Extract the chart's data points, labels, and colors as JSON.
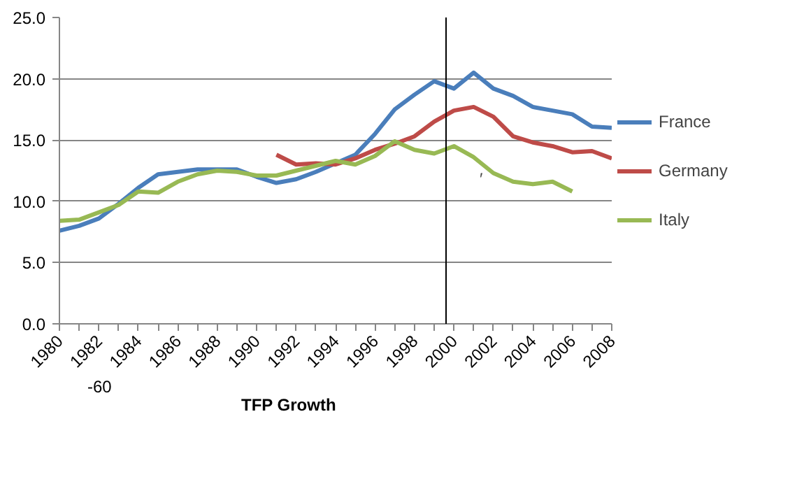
{
  "chart_data": {
    "type": "line",
    "x": [
      1980,
      1981,
      1982,
      1983,
      1984,
      1985,
      1986,
      1987,
      1988,
      1989,
      1990,
      1991,
      1992,
      1993,
      1994,
      1995,
      1996,
      1997,
      1998,
      1999,
      2000,
      2001,
      2002,
      2003,
      2004,
      2005,
      2006,
      2007,
      2008
    ],
    "series": [
      {
        "name": "France",
        "color": "#4a7ebb",
        "values": [
          7.6,
          8.0,
          8.6,
          9.8,
          11.1,
          12.2,
          12.4,
          12.6,
          12.6,
          12.6,
          12.0,
          11.5,
          11.8,
          12.4,
          13.1,
          13.8,
          15.5,
          17.5,
          18.7,
          19.8,
          19.2,
          20.5,
          19.2,
          18.6,
          17.7,
          17.4,
          17.1,
          16.1,
          16.0
        ]
      },
      {
        "name": "Germany",
        "color": "#be4b48",
        "values": [
          null,
          null,
          null,
          null,
          null,
          null,
          null,
          null,
          null,
          null,
          null,
          13.8,
          13.0,
          13.1,
          13.0,
          13.5,
          14.2,
          14.7,
          15.3,
          16.5,
          17.4,
          17.7,
          16.9,
          15.3,
          14.8,
          14.5,
          14.0,
          14.1,
          13.5
        ]
      },
      {
        "name": "Italy",
        "color": "#98b954",
        "values": [
          8.4,
          8.5,
          9.1,
          9.7,
          10.8,
          10.7,
          11.6,
          12.2,
          12.5,
          12.4,
          12.1,
          12.1,
          12.5,
          12.9,
          13.3,
          13.0,
          13.7,
          14.9,
          14.2,
          13.9,
          14.5,
          13.6,
          12.3,
          11.6,
          11.4,
          11.6,
          10.8,
          null,
          null
        ]
      }
    ],
    "xlim": [
      1980,
      2008
    ],
    "xticks": [
      1980,
      {
        "value": 1981,
        "label": null
      },
      1982,
      {
        "value": 1983,
        "label": null
      },
      1984,
      {
        "value": 1985,
        "label": null
      },
      1986,
      {
        "value": 1987,
        "label": null
      },
      1988,
      {
        "value": 1989,
        "label": null
      },
      1990,
      {
        "value": 1991,
        "label": null
      },
      1992,
      {
        "value": 1993,
        "label": null
      },
      1994,
      {
        "value": 1995,
        "label": null
      },
      1996,
      {
        "value": 1997,
        "label": null
      },
      1998,
      {
        "value": 1999,
        "label": null
      },
      2000,
      {
        "value": 2001,
        "label": null
      },
      2002,
      {
        "value": 2003,
        "label": null
      },
      2004,
      {
        "value": 2005,
        "label": null
      },
      2006,
      {
        "value": 2007,
        "label": null
      },
      2008
    ],
    "ylim": [
      0,
      25
    ],
    "yticks": [
      {
        "value": 0,
        "label": "0.0"
      },
      {
        "value": 5,
        "label": "5.0"
      },
      {
        "value": 10,
        "label": "10.0"
      },
      {
        "value": 15,
        "label": "15.0"
      },
      {
        "value": 20,
        "label": "20.0"
      },
      {
        "value": 25,
        "label": "25.0"
      }
    ],
    "ref_lines": [
      {
        "axis": "x",
        "value": 1999.6,
        "color": "#000000"
      }
    ],
    "annotations": [
      "-60",
      "TFP Growth",
      "′"
    ],
    "grid": "y",
    "legend": "right",
    "marker": "none",
    "line_style": "solid"
  }
}
